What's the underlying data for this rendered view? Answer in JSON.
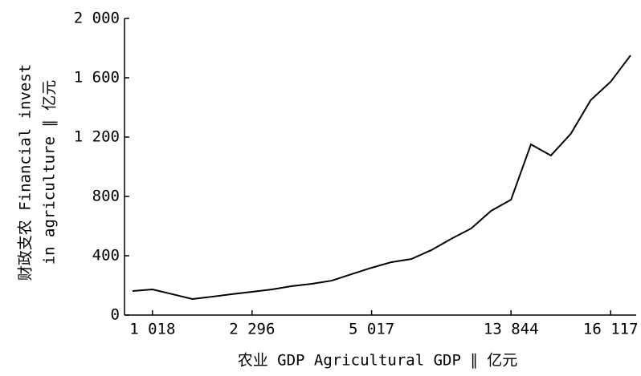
{
  "chart_data": {
    "type": "line",
    "x_label": "农业 GDP Agricultural GDP ∥ 亿元",
    "y_label": [
      "财政支农 Financial invest",
      "in agriculture ∥ 亿元"
    ],
    "categories": [
      null,
      "1 018",
      null,
      null,
      null,
      null,
      "2 296",
      null,
      null,
      null,
      null,
      null,
      "5 017",
      null,
      null,
      null,
      null,
      null,
      null,
      "13 844",
      null,
      null,
      null,
      null,
      "16 117",
      null
    ],
    "series": [
      {
        "color": "#000000",
        "values": [
          162,
          173,
          141,
          108,
          124,
          141,
          157,
          173,
          195,
          211,
          232,
          276,
          319,
          357,
          378,
          438,
          514,
          584,
          703,
          778,
          1151,
          1076,
          1222,
          1449,
          1573,
          1751
        ]
      }
    ],
    "ylim": [
      0,
      2000
    ],
    "yticks": [
      0,
      400,
      800,
      {
        "value": 1200,
        "label": "1 200"
      },
      {
        "value": 1600,
        "label": "1 600"
      },
      {
        "value": 2000,
        "label": "2 000"
      }
    ]
  }
}
